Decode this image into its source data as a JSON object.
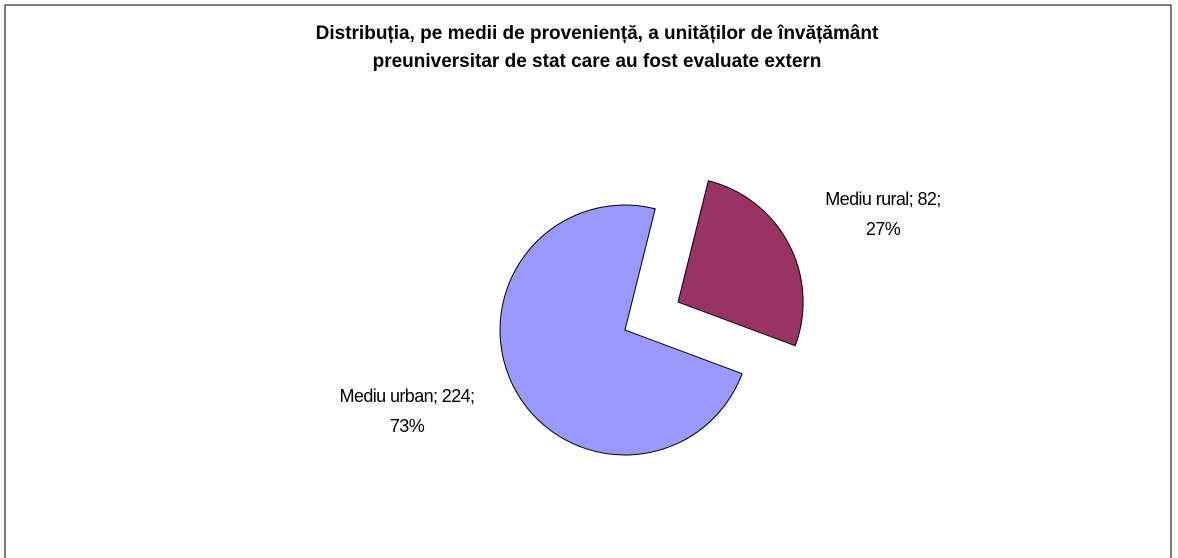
{
  "chart_data": {
    "type": "pie",
    "title": [
      "Distribuția, pe medii de proveniență, a unităților de învățământ",
      "preuniversitar de stat care au fost evaluate extern"
    ],
    "values": [
      82,
      224
    ],
    "value_labels": [
      [
        "Mediu rural; 82;",
        "27%"
      ],
      [
        "Mediu urban; 224;",
        "73%"
      ]
    ],
    "colors": [
      "#993366",
      "#9999ff"
    ],
    "exploded": [
      true,
      false
    ]
  }
}
